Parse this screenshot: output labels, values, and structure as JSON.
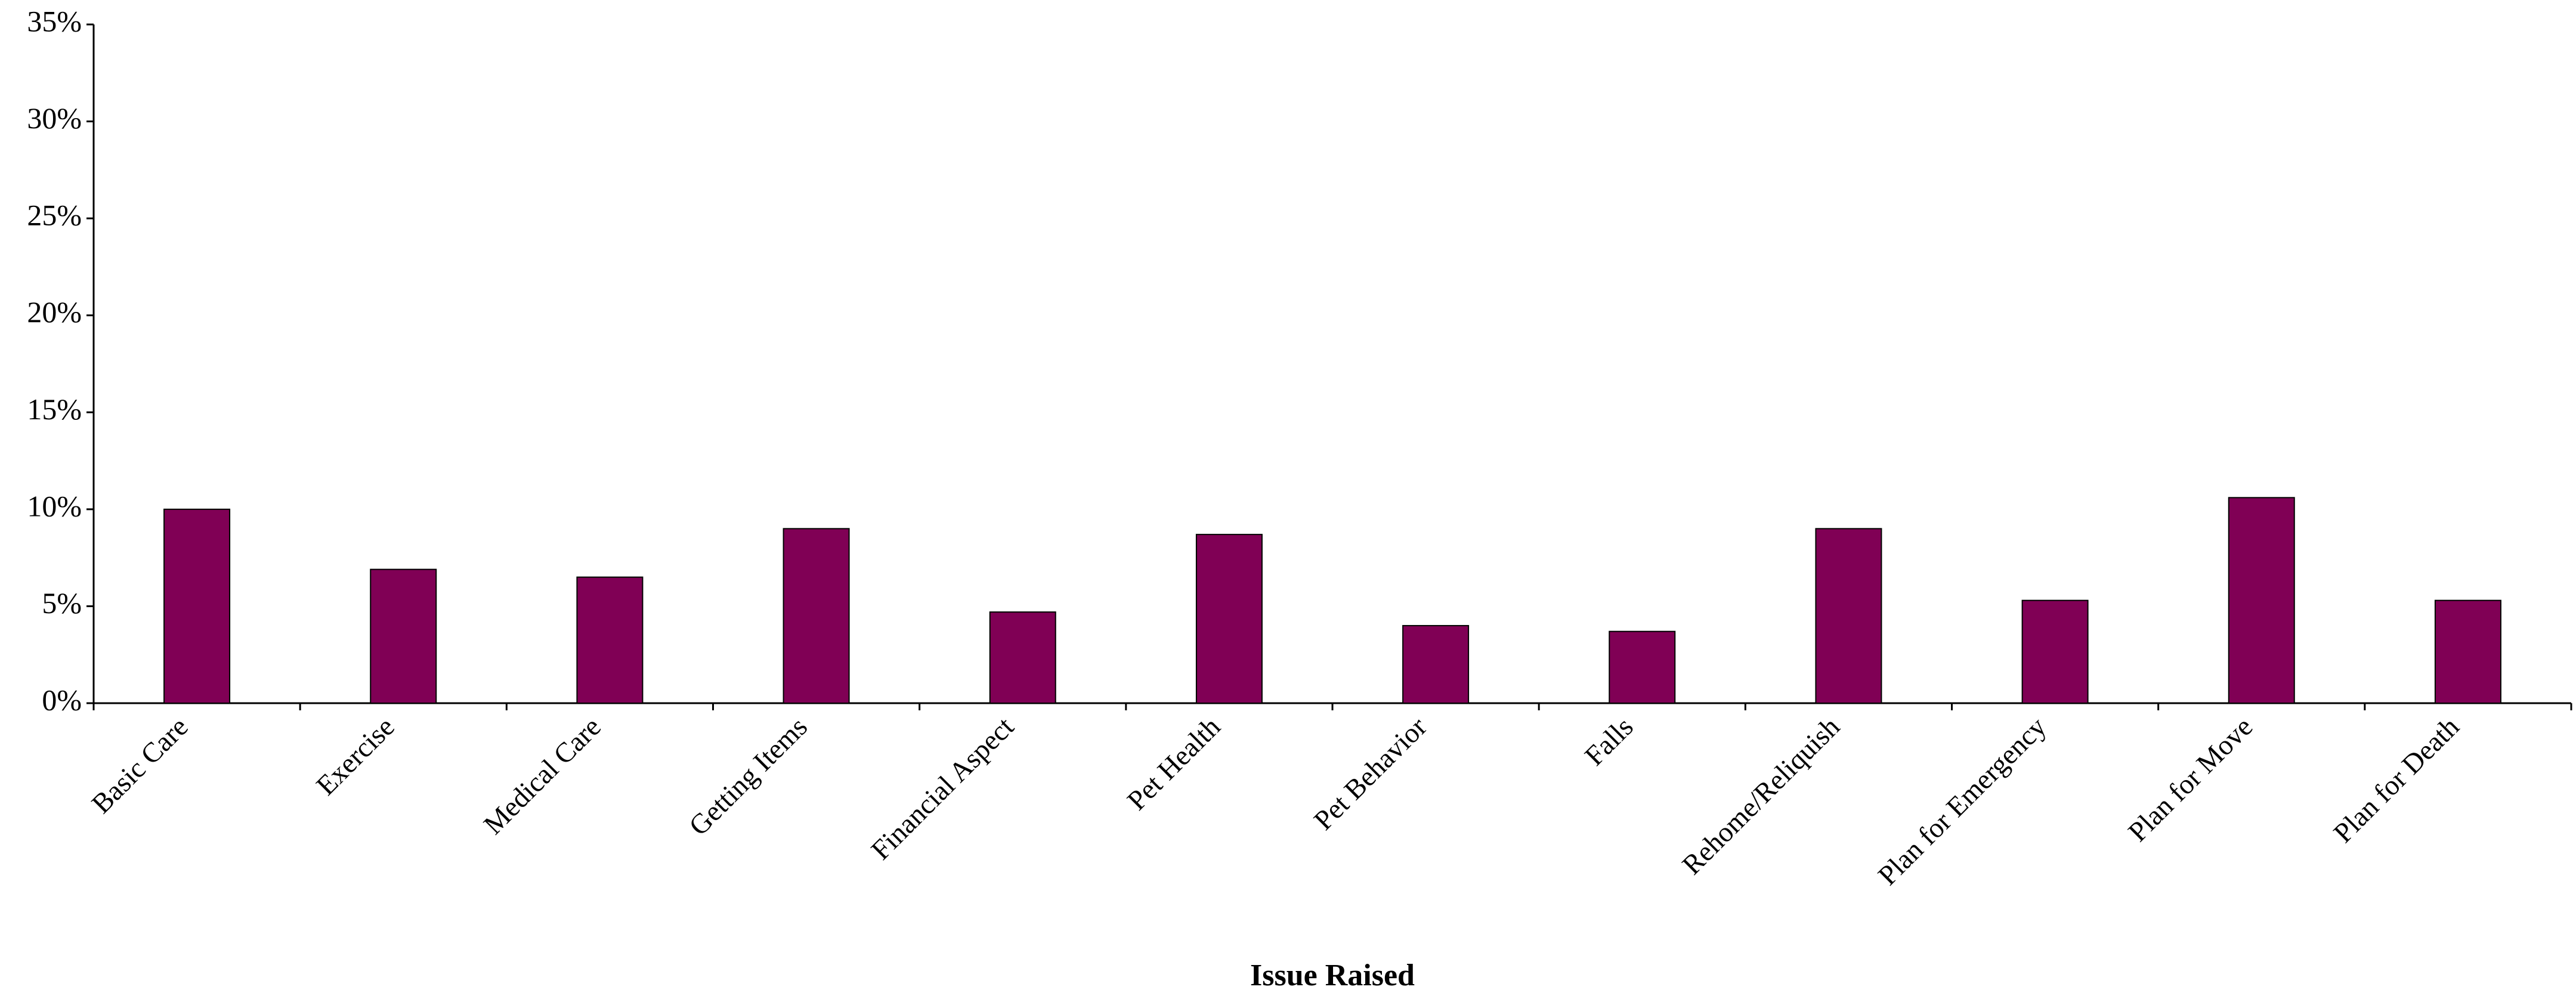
{
  "chart_data": {
    "type": "bar",
    "x_label": "Issue Raised",
    "categories": [
      "Basic Care",
      "Exercise",
      "Medical Care",
      "Getting Items",
      "Financial Aspect",
      "Pet Health",
      "Pet Behavior",
      "Falls",
      "Rehome/Reliquish",
      "Plan for Emergency",
      "Plan for Move",
      "Plan for Death"
    ],
    "values": [
      10,
      6.9,
      6.5,
      9,
      4.7,
      8.7,
      4,
      3.7,
      9,
      5.3,
      10.6,
      5.3
    ],
    "color": "#800055",
    "ylim": [
      0,
      35
    ],
    "yticks": [
      {
        "value": 0,
        "label": "0%"
      },
      {
        "value": 5,
        "label": "5%"
      },
      {
        "value": 10,
        "label": "10%"
      },
      {
        "value": 15,
        "label": "15%"
      },
      {
        "value": 20,
        "label": "20%"
      },
      {
        "value": 25,
        "label": "25%"
      },
      {
        "value": 30,
        "label": "30%"
      },
      {
        "value": 35,
        "label": "35%"
      }
    ],
    "grid": false
  }
}
